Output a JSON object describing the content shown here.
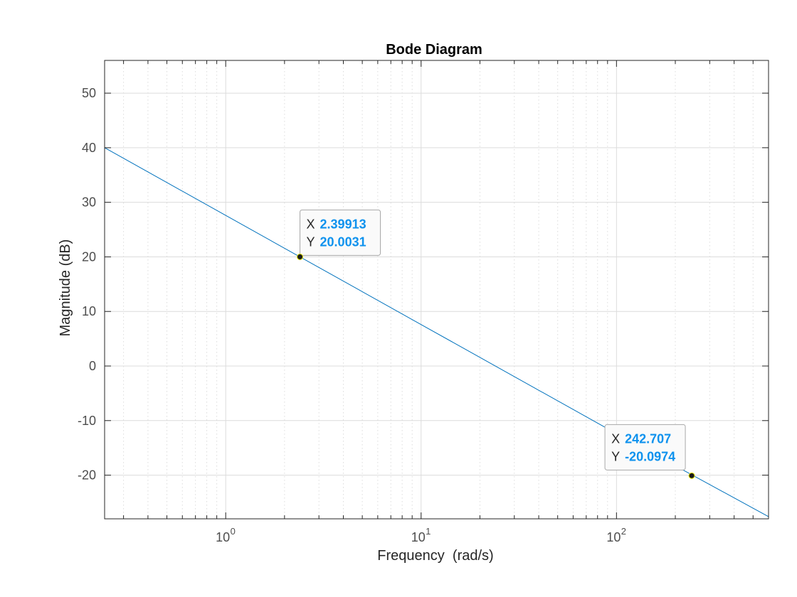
{
  "chart_data": {
    "type": "line",
    "title": "Bode Diagram",
    "xlabel": "Frequency  (rad/s)",
    "ylabel": "Magnitude (dB)",
    "xscale": "log",
    "xlim": [
      0.24,
      600
    ],
    "ylim": [
      -28,
      56
    ],
    "grid": true,
    "x_tick_labels": [
      {
        "value": 1,
        "base": "10",
        "exp": "0"
      },
      {
        "value": 10,
        "base": "10",
        "exp": "1"
      },
      {
        "value": 100,
        "base": "10",
        "exp": "2"
      }
    ],
    "y_ticks": [
      -20,
      -10,
      0,
      10,
      20,
      30,
      40,
      50
    ],
    "series": [
      {
        "x": [
          0.24,
          1,
          10,
          100,
          600
        ],
        "y": [
          40.0,
          27.6,
          7.6,
          -12.4,
          -27.6
        ]
      }
    ],
    "datatips": [
      {
        "x_label": "X",
        "x_value": "2.39913",
        "y_label": "Y",
        "y_value": "20.0031",
        "x": 2.39913,
        "y": 20.0031
      },
      {
        "x_label": "X",
        "x_value": "242.707",
        "y_label": "Y",
        "y_value": "-20.0974",
        "x": 242.707,
        "y": -20.0974
      }
    ],
    "colors": {
      "line": "#0072bd",
      "datatip_value": "#0e92ee",
      "grid": "#dcdcdc",
      "axes": "#262626"
    }
  }
}
